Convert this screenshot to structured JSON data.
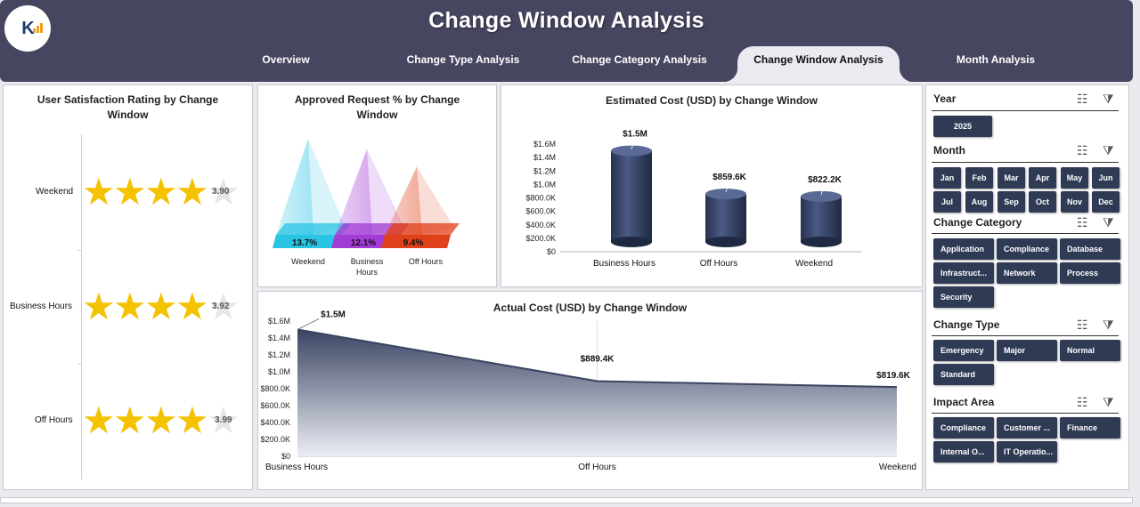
{
  "header": {
    "title": "Change Window Analysis",
    "logo_text": "K"
  },
  "tabs": [
    {
      "label": "Overview"
    },
    {
      "label": "Change Type Analysis"
    },
    {
      "label": "Change Category Analysis"
    },
    {
      "label": "Change Window Analysis",
      "active": true
    },
    {
      "label": "Month Analysis"
    }
  ],
  "satisfaction": {
    "title": "User Satisfaction Rating by Change Window",
    "rows": [
      {
        "label": "Weekend",
        "value": "3.90"
      },
      {
        "label": "Business Hours",
        "value": "3.92"
      },
      {
        "label": "Off Hours",
        "value": "3.99"
      }
    ]
  },
  "approved": {
    "title": "Approved Request % by Change Window"
  },
  "estimated": {
    "title": "Estimated Cost (USD) by Change Window"
  },
  "actual": {
    "title": "Actual Cost (USD) by Change Window"
  },
  "chart_data": [
    {
      "type": "bar",
      "style": "pyramid-3d",
      "title": "Approved Request % by Change Window",
      "categories": [
        "Weekend",
        "Business Hours",
        "Off Hours"
      ],
      "values": [
        13.7,
        12.1,
        9.4
      ],
      "data_labels": [
        "13.7%",
        "12.1%",
        "9.4%"
      ],
      "colors": [
        "#29c4e4",
        "#a33bd6",
        "#e0401a"
      ]
    },
    {
      "type": "bar",
      "style": "cylinder-3d",
      "title": "Estimated Cost (USD) by Change Window",
      "categories": [
        "Business Hours",
        "Off Hours",
        "Weekend"
      ],
      "values": [
        1500000,
        859600,
        822200
      ],
      "data_labels": [
        "$1.5M",
        "$859.6K",
        "$822.2K"
      ],
      "ylim": [
        0,
        1600000
      ],
      "yticks": [
        "$0",
        "$200.0K",
        "$400.0K",
        "$600.0K",
        "$800.0K",
        "$1.0M",
        "$1.2M",
        "$1.4M",
        "$1.6M"
      ],
      "color": "#2e3b5e"
    },
    {
      "type": "area",
      "title": "Actual Cost (USD) by Change Window",
      "categories": [
        "Business Hours",
        "Off Hours",
        "Weekend"
      ],
      "values": [
        1500000,
        889400,
        819600
      ],
      "data_labels": [
        "$1.5M",
        "$889.4K",
        "$819.6K"
      ],
      "ylim": [
        0,
        1600000
      ],
      "yticks": [
        "$0",
        "$200.0K",
        "$400.0K",
        "$600.0K",
        "$800.0K",
        "$1.0M",
        "$1.2M",
        "$1.4M",
        "$1.6M"
      ],
      "color": "#3a4462"
    }
  ],
  "slicers": {
    "year": {
      "title": "Year",
      "items": [
        "2025"
      ]
    },
    "month": {
      "title": "Month",
      "items": [
        "Jan",
        "Feb",
        "Mar",
        "Apr",
        "May",
        "Jun",
        "Jul",
        "Aug",
        "Sep",
        "Oct",
        "Nov",
        "Dec"
      ]
    },
    "category": {
      "title": "Change Category",
      "items": [
        "Application",
        "Compliance",
        "Database",
        "Infrastruct...",
        "Network",
        "Process",
        "Security"
      ]
    },
    "type": {
      "title": "Change Type",
      "items": [
        "Emergency",
        "Major",
        "Normal",
        "Standard"
      ]
    },
    "impact": {
      "title": "Impact Area",
      "items": [
        "Compliance",
        "Customer ...",
        "Finance",
        "Internal O...",
        "IT Operatio..."
      ]
    }
  },
  "icons": {
    "multiselect": "multi-select-icon",
    "clear_filter": "clear-filter-icon"
  }
}
